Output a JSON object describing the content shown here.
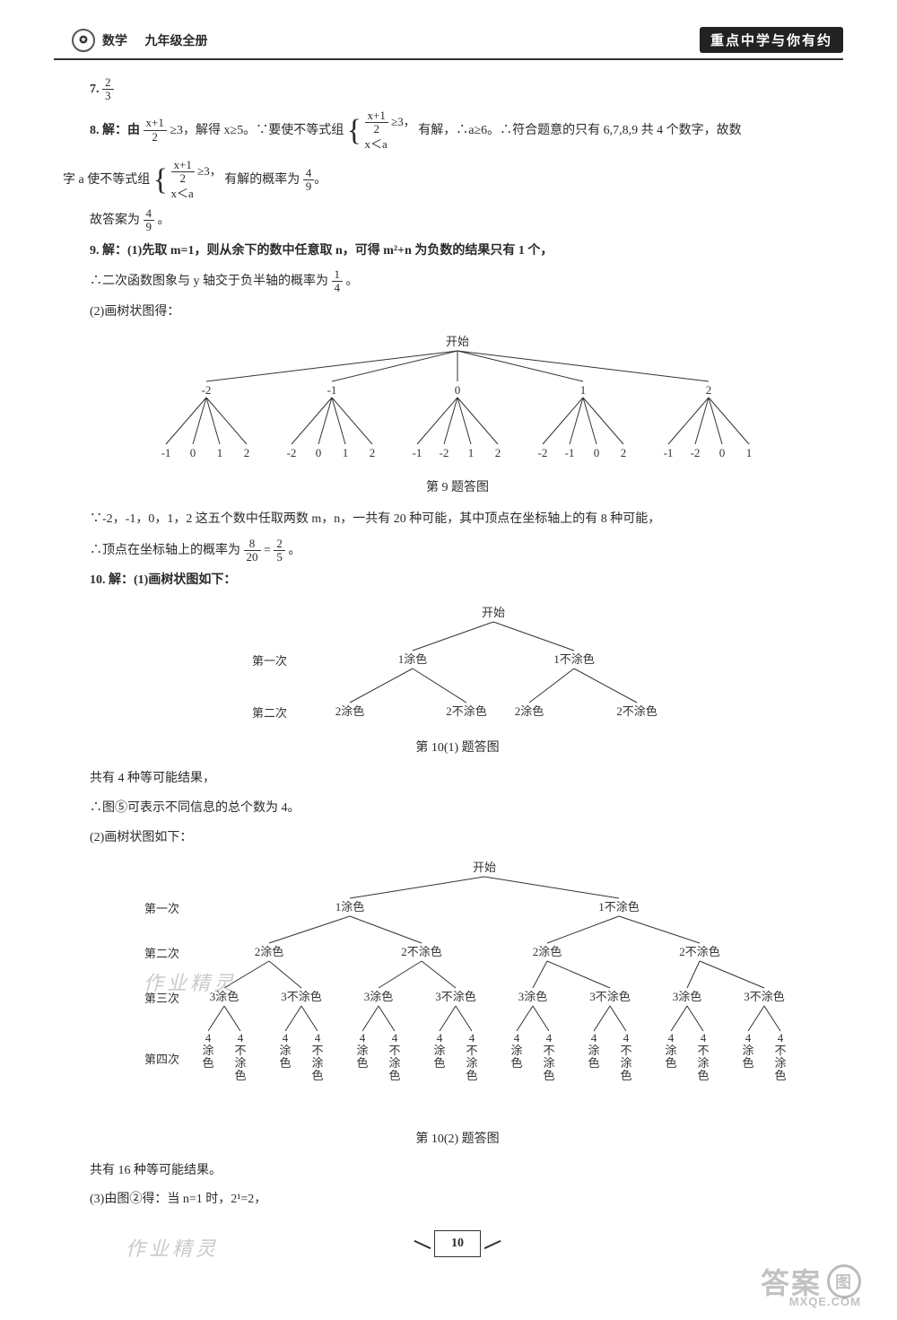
{
  "header": {
    "subject": "数学",
    "grade": "九年级全册",
    "right_banner": "重点中学与你有约"
  },
  "q7": {
    "label": "7.",
    "frac_n": "2",
    "frac_d": "3"
  },
  "q8": {
    "label": "8. 解：由",
    "ineq1_lhs_n": "x+1",
    "ineq1_lhs_d": "2",
    "ineq1_op": "≥3，解得 x≥5。∵要使不等式组",
    "sys1_a_n": "x+1",
    "sys1_a_d": "2",
    "sys1_a_tail": "≥3，",
    "sys1_b": "x＜a",
    "tail1": "有解，∴a≥6。∴符合题意的只有 6,7,8,9 共 4 个数字，故数",
    "line2a": "字 a 使不等式组",
    "sys2_a_n": "x+1",
    "sys2_a_d": "2",
    "sys2_a_tail": "≥3，",
    "sys2_b": "x＜a",
    "line2b": "有解的概率为",
    "ans_n": "4",
    "ans_d": "9",
    "line3": "故答案为",
    "ans2_n": "4",
    "ans2_d": "9",
    "period": "。"
  },
  "q9": {
    "label": "9. 解：(1)先取 m=1，则从余下的数中任意取 n，可得 m²+n 为负数的结果只有 1 个，",
    "line2a": "∴二次函数图象与 y 轴交于负半轴的概率为",
    "p1_n": "1",
    "p1_d": "4",
    "p1_tail": "。",
    "line3": "(2)画树状图得：",
    "tree": {
      "root": "开始",
      "level1": [
        "-2",
        "-1",
        "0",
        "1",
        "2"
      ],
      "level2": [
        [
          "-1",
          "0",
          "1",
          "2"
        ],
        [
          "-2",
          "0",
          "1",
          "2"
        ],
        [
          "-1",
          "-2",
          "1",
          "2"
        ],
        [
          "-2",
          "-1",
          "0",
          "2"
        ],
        [
          "-1",
          "-2",
          "0",
          "1"
        ]
      ],
      "caption": "第 9 题答图"
    },
    "after1": "∵-2，-1，0，1，2 这五个数中任取两数 m，n，一共有 20 种可能，其中顶点在坐标轴上的有 8 种可能，",
    "after2a": "∴顶点在坐标轴上的概率为",
    "f1_n": "8",
    "f1_d": "20",
    "eq": " = ",
    "f2_n": "2",
    "f2_d": "5",
    "after2b": "。"
  },
  "q10": {
    "label": "10. 解：(1)画树状图如下：",
    "tree1": {
      "root": "开始",
      "row_labels": [
        "第一次",
        "第二次"
      ],
      "l1": [
        "1涂色",
        "1不涂色"
      ],
      "l2": [
        "2涂色",
        "2不涂色",
        "2涂色",
        "2不涂色"
      ],
      "caption": "第 10(1) 题答图"
    },
    "after1a": "共有 4 种等可能结果，",
    "after1b": "∴图⑤可表示不同信息的总个数为 4。",
    "line_p2": "(2)画树状图如下：",
    "tree2": {
      "root": "开始",
      "row_labels": [
        "第一次",
        "第二次",
        "第三次",
        "第四次"
      ],
      "l1": [
        "1涂色",
        "1不涂色"
      ],
      "l2": [
        "2涂色",
        "2不涂色",
        "2涂色",
        "2不涂色"
      ],
      "l3": [
        "3涂色",
        "3不涂色",
        "3涂色",
        "3不涂色",
        "3涂色",
        "3不涂色",
        "3涂色",
        "3不涂色"
      ],
      "l4_pair": [
        "4涂色",
        "4不涂色"
      ],
      "caption": "第 10(2) 题答图"
    },
    "after2a": "共有 16 种等可能结果。",
    "after2b": "(3)由图②得：当 n=1 时，2¹=2，"
  },
  "page_number": "10",
  "wm_left1": "作业精灵",
  "wm_left2": "作业精灵",
  "wm_right": {
    "text": "答案",
    "sub": "MXQE.COM",
    "circ": "图"
  },
  "colors": {
    "text": "#2a2a2a",
    "line": "#333333",
    "bg": "#ffffff"
  }
}
